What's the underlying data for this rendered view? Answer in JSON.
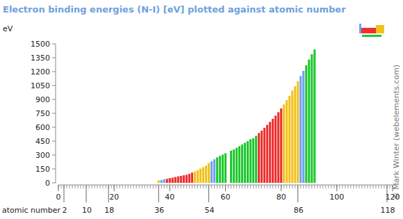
{
  "chart_data": {
    "type": "bar",
    "title": "Electron binding energies (N-I) [eV] plotted against atomic number",
    "ylabel": "eV",
    "xlabel": "atomic number",
    "credit": "© Mark Winter (webelements.com)",
    "x": [
      36,
      37,
      38,
      39,
      40,
      41,
      42,
      43,
      44,
      45,
      46,
      47,
      48,
      49,
      50,
      51,
      52,
      53,
      54,
      55,
      56,
      57,
      58,
      59,
      60,
      61,
      62,
      63,
      64,
      65,
      66,
      67,
      68,
      69,
      70,
      71,
      72,
      73,
      74,
      75,
      76,
      77,
      78,
      79,
      80,
      81,
      82,
      83,
      84,
      85,
      86,
      87,
      88,
      89,
      90,
      91,
      92
    ],
    "values": [
      27.5,
      30.5,
      38.9,
      43.8,
      50.6,
      56.4,
      63.2,
      69.5,
      75.0,
      81.4,
      87.1,
      97.0,
      109.8,
      122.9,
      137.1,
      153.2,
      169.4,
      186,
      213.2,
      232.3,
      253.5,
      274.7,
      291.0,
      304.5,
      319.2,
      null,
      347.2,
      360,
      378.6,
      396.0,
      414.2,
      432.4,
      449.8,
      470.9,
      480.5,
      506.8,
      538,
      563.4,
      594.1,
      625.4,
      658.2,
      691.1,
      725.4,
      762.1,
      802.2,
      846.2,
      891.8,
      939,
      995,
      1042,
      1097,
      1153,
      1208,
      1269,
      1330,
      1387,
      1439
    ],
    "colors": [
      "#f2c21b",
      "#6fa0ee",
      "#6fa0ee",
      "#ee3030",
      "#ee3030",
      "#ee3030",
      "#ee3030",
      "#ee3030",
      "#ee3030",
      "#ee3030",
      "#ee3030",
      "#ee3030",
      "#ee3030",
      "#f2c21b",
      "#f2c21b",
      "#f2c21b",
      "#f2c21b",
      "#f2c21b",
      "#f2c21b",
      "#6fa0ee",
      "#6fa0ee",
      "#20c830",
      "#20c830",
      "#20c830",
      "#20c830",
      "#20c830",
      "#20c830",
      "#20c830",
      "#20c830",
      "#20c830",
      "#20c830",
      "#20c830",
      "#20c830",
      "#20c830",
      "#20c830",
      "#20c830",
      "#ee3030",
      "#ee3030",
      "#ee3030",
      "#ee3030",
      "#ee3030",
      "#ee3030",
      "#ee3030",
      "#ee3030",
      "#ee3030",
      "#f2c21b",
      "#f2c21b",
      "#f2c21b",
      "#f2c21b",
      "#f2c21b",
      "#f2c21b",
      "#6fa0ee",
      "#6fa0ee",
      "#20c830",
      "#20c830",
      "#20c830",
      "#20c830"
    ],
    "xlim": [
      0,
      120
    ],
    "xticks": [
      0,
      20,
      40,
      60,
      80,
      100,
      120
    ],
    "xticks_secondary": [
      2,
      10,
      18,
      36,
      54,
      86,
      118
    ],
    "ylim": [
      0,
      1500
    ],
    "yticks": [
      0,
      150,
      300,
      450,
      600,
      750,
      900,
      1050,
      1200,
      1350,
      1500
    ],
    "grid": false
  }
}
